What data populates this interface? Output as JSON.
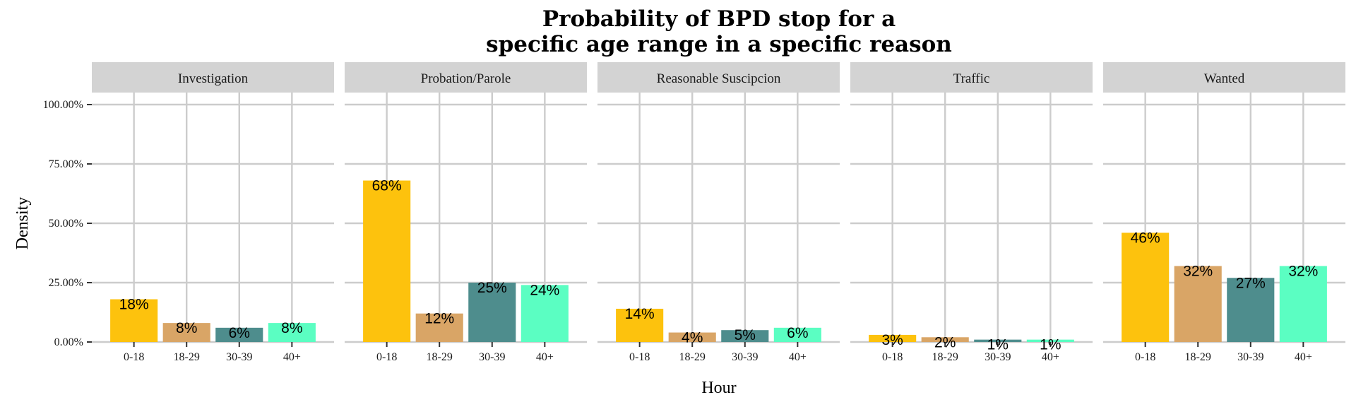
{
  "chart_data": {
    "type": "bar",
    "title": "Probability of BPD stop for a\nspecific age range in a specific reason",
    "xlabel": "Hour",
    "ylabel": "Density",
    "ylim": [
      0,
      1
    ],
    "y_ticks": [
      0,
      0.25,
      0.5,
      0.75,
      1.0
    ],
    "y_tick_labels": [
      "0.00%",
      "25.00%",
      "50.00%",
      "75.00%",
      "100.00%"
    ],
    "categories": [
      "0-18",
      "18-29",
      "30-39",
      "40+"
    ],
    "category_colors": [
      "#FDC20D",
      "#D9A566",
      "#4E8D8D",
      "#5BFEC2"
    ],
    "grid": true,
    "legend": "none",
    "facets": [
      {
        "name": "Investigation",
        "values": [
          0.18,
          0.08,
          0.06,
          0.08
        ],
        "labels": [
          "18%",
          "8%",
          "6%",
          "8%"
        ]
      },
      {
        "name": "Probation/Parole",
        "values": [
          0.68,
          0.12,
          0.25,
          0.24
        ],
        "labels": [
          "68%",
          "12%",
          "25%",
          "24%"
        ]
      },
      {
        "name": "Reasonable Suscipcion",
        "values": [
          0.14,
          0.04,
          0.05,
          0.06
        ],
        "labels": [
          "14%",
          "4%",
          "5%",
          "6%"
        ]
      },
      {
        "name": "Traffic",
        "values": [
          0.03,
          0.02,
          0.01,
          0.01
        ],
        "labels": [
          "3%",
          "2%",
          "1%",
          "1%"
        ]
      },
      {
        "name": "Wanted",
        "values": [
          0.46,
          0.32,
          0.27,
          0.32
        ],
        "labels": [
          "46%",
          "32%",
          "27%",
          "32%"
        ]
      }
    ]
  }
}
